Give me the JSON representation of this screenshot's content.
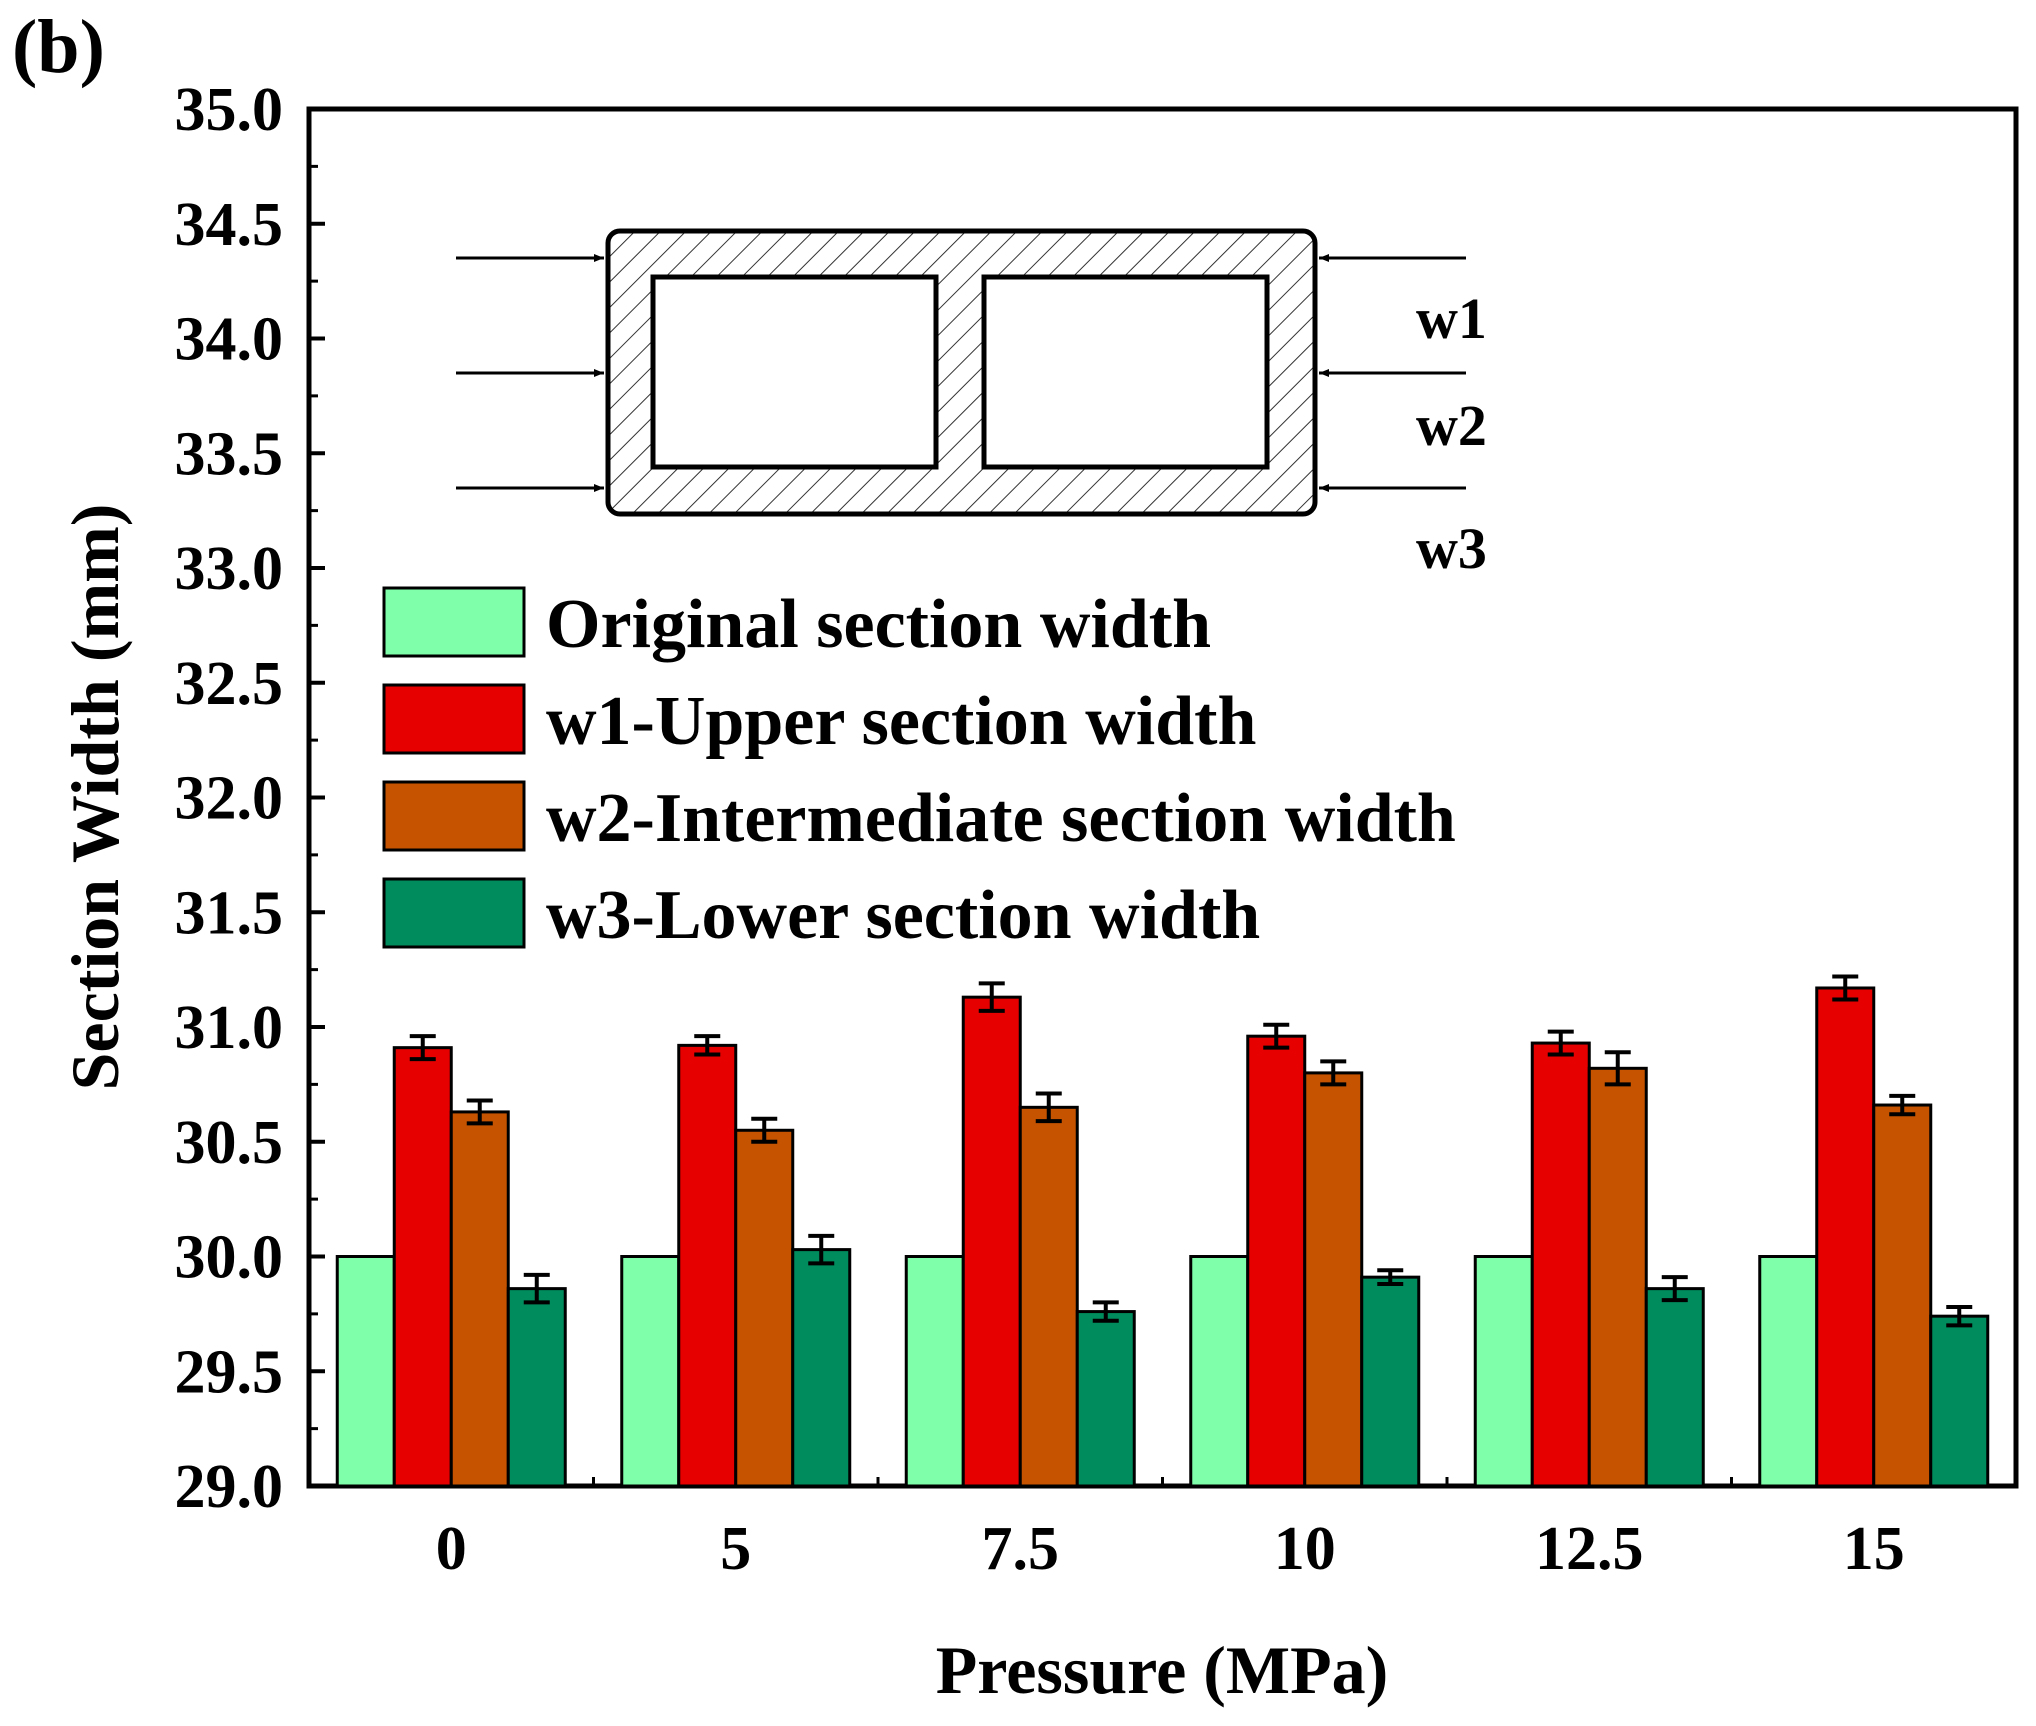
{
  "panel_label": "(b)",
  "colors": {
    "original": "#80FFAA",
    "w1": "#E60000",
    "w2": "#C65300",
    "w3": "#008C5C",
    "axis": "#000000"
  },
  "chart_data": {
    "type": "bar",
    "title": "",
    "xlabel": "Pressure (MPa)",
    "ylabel": "Section Width (mm)",
    "ylim": [
      29.0,
      35.0
    ],
    "yticks": [
      "29.0",
      "29.5",
      "30.0",
      "30.5",
      "31.0",
      "31.5",
      "32.0",
      "32.5",
      "33.0",
      "33.5",
      "34.0",
      "34.5",
      "35.0"
    ],
    "categories": [
      "0",
      "5",
      "7.5",
      "10",
      "12.5",
      "15"
    ],
    "series": [
      {
        "name": "Original section width",
        "key": "original",
        "values": [
          30.0,
          30.0,
          30.0,
          30.0,
          30.0,
          30.0
        ],
        "errors": [
          0,
          0,
          0,
          0,
          0,
          0
        ]
      },
      {
        "name": "w1-Upper section width",
        "key": "w1",
        "values": [
          30.91,
          30.92,
          31.13,
          30.96,
          30.93,
          31.17
        ],
        "errors": [
          0.05,
          0.04,
          0.06,
          0.05,
          0.05,
          0.05
        ]
      },
      {
        "name": "w2-Intermediate section width",
        "key": "w2",
        "values": [
          30.63,
          30.55,
          30.65,
          30.8,
          30.82,
          30.66
        ],
        "errors": [
          0.05,
          0.05,
          0.06,
          0.05,
          0.07,
          0.04
        ]
      },
      {
        "name": "w3-Lower section width",
        "key": "w3",
        "values": [
          29.86,
          30.03,
          29.76,
          29.91,
          29.86,
          29.74
        ],
        "errors": [
          0.06,
          0.06,
          0.04,
          0.03,
          0.05,
          0.04
        ]
      }
    ],
    "legend_position": "upper-left",
    "inset_diagram": {
      "description_labels": [
        "w1",
        "w2",
        "w3"
      ]
    }
  }
}
